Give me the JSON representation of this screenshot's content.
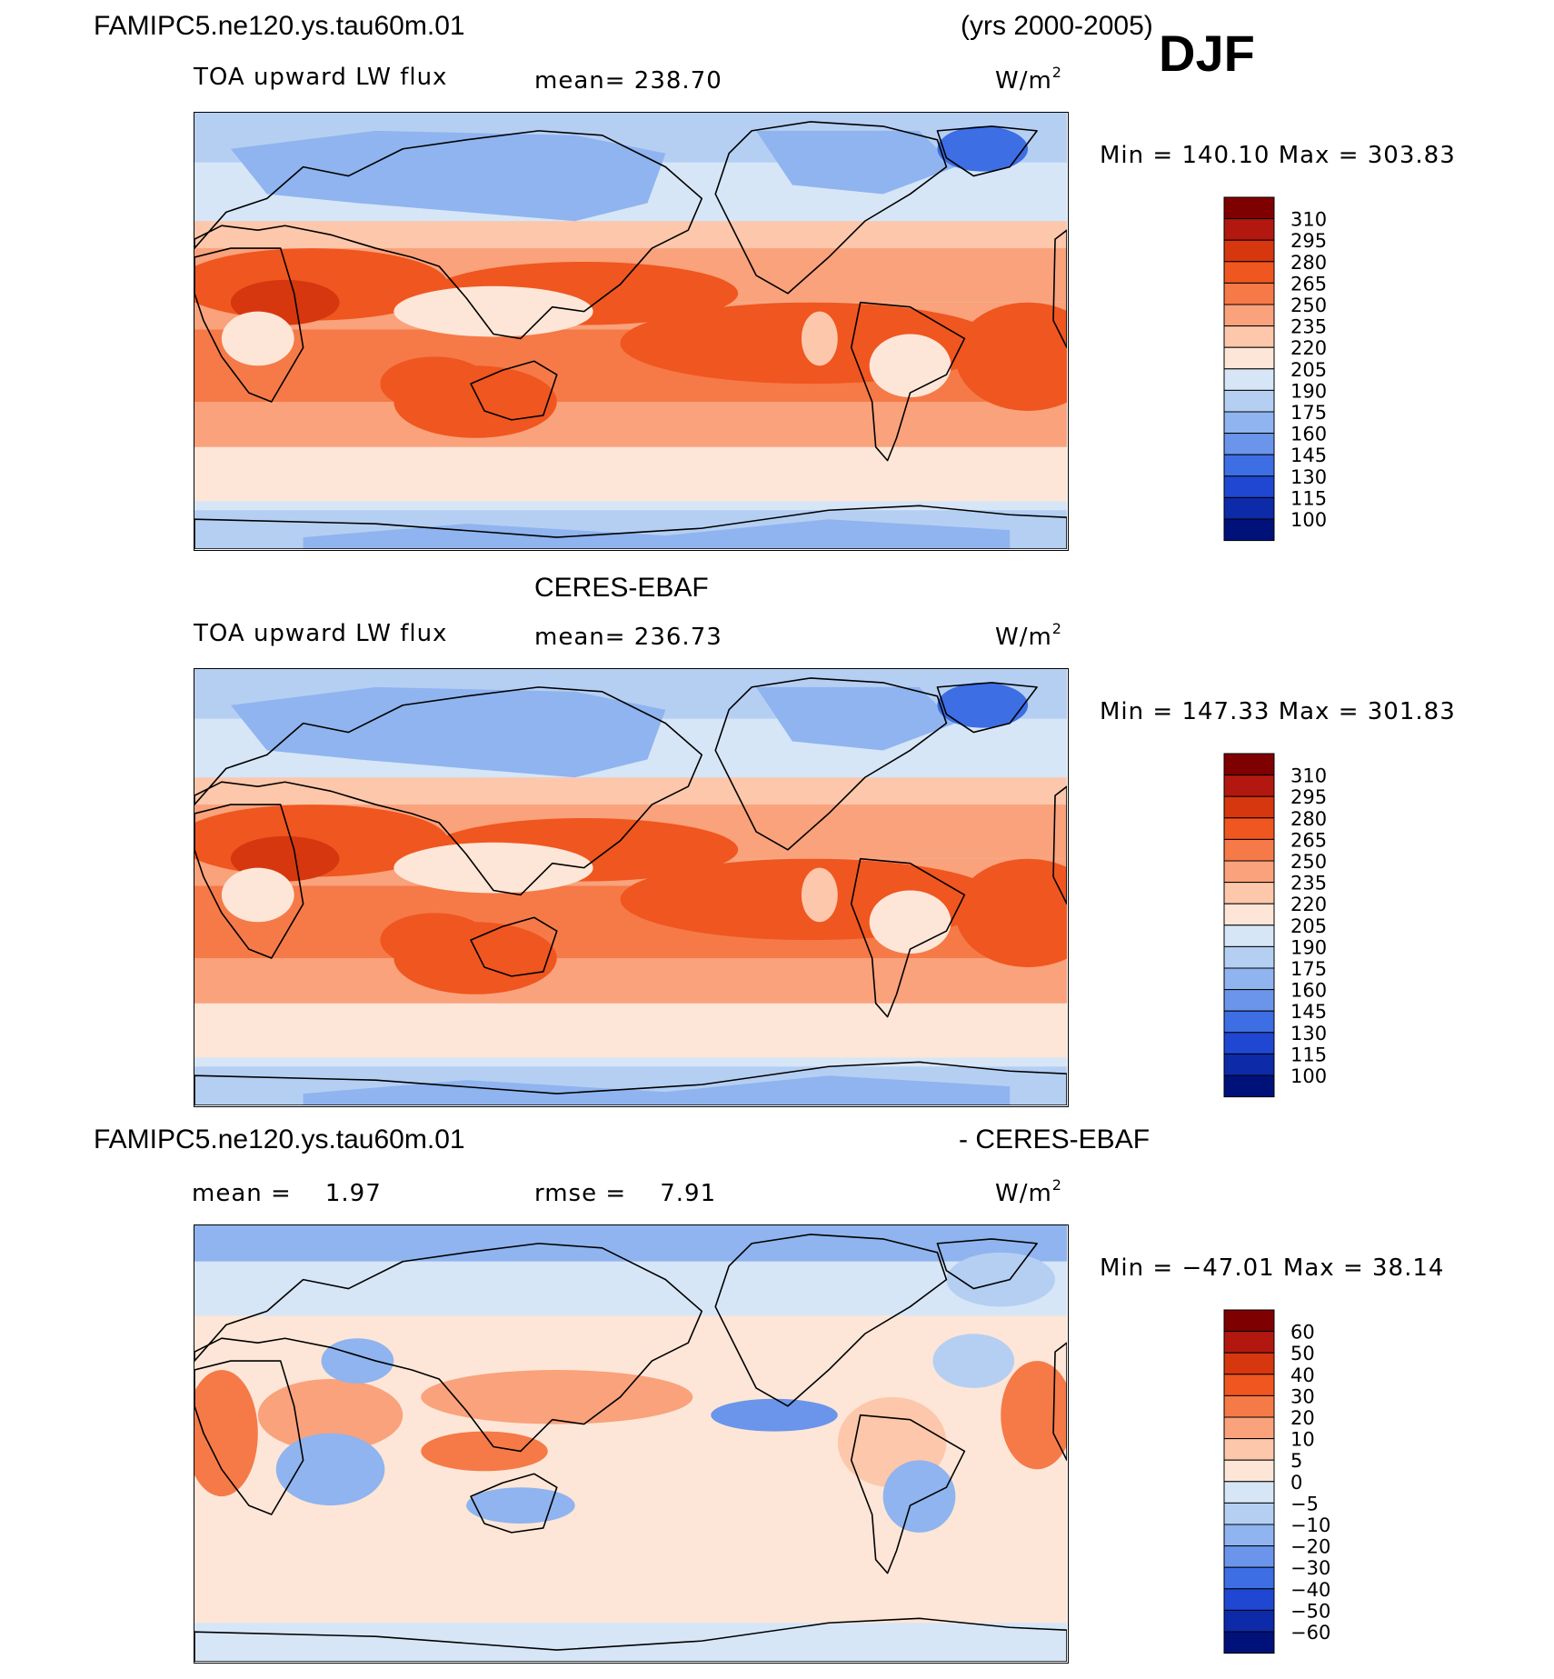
{
  "header": {
    "case_name": "FAMIPC5.ne120.ys.tau60m.01",
    "years": "(yrs 2000-2005)",
    "season": "DJF"
  },
  "panels": [
    {
      "title": "",
      "var_label": "TOA upward LW flux",
      "mean_label": "mean=",
      "mean_value": "238.70",
      "units": "W/m",
      "units_sup": "2",
      "minmax": "Min  =  140.10  Max  =  303.83"
    },
    {
      "title": "CERES-EBAF",
      "var_label": "TOA upward LW flux",
      "mean_label": "mean=",
      "mean_value": "236.73",
      "units": "W/m",
      "units_sup": "2",
      "minmax": "Min  =  147.33  Max  =  301.83"
    },
    {
      "title_left": "FAMIPC5.ne120.ys.tau60m.01",
      "title_right": "- CERES-EBAF",
      "mean_label": "mean  =",
      "mean_value": "1.97",
      "rmse_label": "rmse  =",
      "rmse_value": "7.91",
      "units": "W/m",
      "units_sup": "2",
      "minmax": "Min  =  −47.01  Max  =    38.14"
    }
  ],
  "chart_data": [
    {
      "type": "heatmap",
      "title": "FAMIPC5.ne120.ys.tau60m.01 TOA upward LW flux (DJF, yrs 2000-2005)",
      "units": "W/m2",
      "mean": 238.7,
      "min": 140.1,
      "max": 303.83,
      "colorbar_levels": [
        "310",
        "295",
        "280",
        "265",
        "250",
        "235",
        "220",
        "205",
        "190",
        "175",
        "160",
        "145",
        "130",
        "115",
        "100"
      ],
      "colorbar_colors": [
        "#7f0000",
        "#b2180f",
        "#d6370f",
        "#f0561f",
        "#f57a48",
        "#f9a27c",
        "#fcc7ab",
        "#fde6d7",
        "#d6e6f7",
        "#b5cff3",
        "#8fb4ef",
        "#6a95ea",
        "#3d6ee4",
        "#1f47d2",
        "#0d2aa8",
        "#00117a"
      ]
    },
    {
      "type": "heatmap",
      "title": "CERES-EBAF TOA upward LW flux",
      "units": "W/m2",
      "mean": 236.73,
      "min": 147.33,
      "max": 301.83,
      "colorbar_levels": [
        "310",
        "295",
        "280",
        "265",
        "250",
        "235",
        "220",
        "205",
        "190",
        "175",
        "160",
        "145",
        "130",
        "115",
        "100"
      ],
      "colorbar_colors": [
        "#7f0000",
        "#b2180f",
        "#d6370f",
        "#f0561f",
        "#f57a48",
        "#f9a27c",
        "#fcc7ab",
        "#fde6d7",
        "#d6e6f7",
        "#b5cff3",
        "#8fb4ef",
        "#6a95ea",
        "#3d6ee4",
        "#1f47d2",
        "#0d2aa8",
        "#00117a"
      ]
    },
    {
      "type": "heatmap",
      "title": "FAMIPC5.ne120.ys.tau60m.01 - CERES-EBAF",
      "units": "W/m2",
      "mean": 1.97,
      "rmse": 7.91,
      "min": -47.01,
      "max": 38.14,
      "colorbar_levels": [
        "60",
        "50",
        "40",
        "30",
        "20",
        "10",
        "5",
        "0",
        "−5",
        "−10",
        "−20",
        "−30",
        "−40",
        "−50",
        "−60"
      ],
      "colorbar_colors": [
        "#7f0000",
        "#b2180f",
        "#d6370f",
        "#f0561f",
        "#f57a48",
        "#f9a27c",
        "#fcc7ab",
        "#fde6d7",
        "#d6e6f7",
        "#b5cff3",
        "#8fb4ef",
        "#6a95ea",
        "#3d6ee4",
        "#1f47d2",
        "#0d2aa8",
        "#00117a"
      ]
    }
  ]
}
